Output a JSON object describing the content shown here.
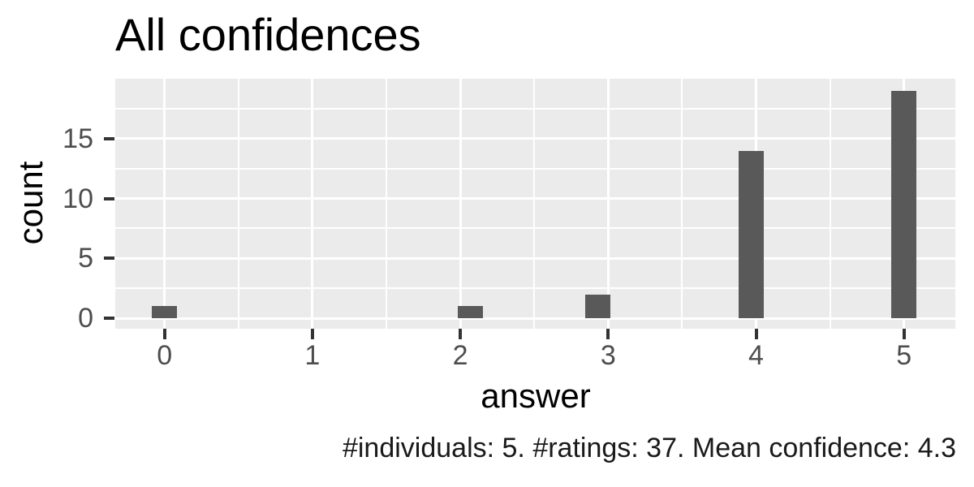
{
  "figure": {
    "title": "All confidences",
    "x_axis": {
      "label": "answer",
      "tick_labels": [
        "0",
        "1",
        "2",
        "3",
        "4",
        "5"
      ]
    },
    "y_axis": {
      "label": "count",
      "tick_labels": [
        "0",
        "5",
        "10",
        "15"
      ]
    },
    "caption": "#individuals: 5. #ratings: 37. Mean confidence: 4.3"
  },
  "chart_data": {
    "type": "bar",
    "subtype": "histogram",
    "title": "All confidences",
    "xlabel": "answer",
    "ylabel": "count",
    "categories": [
      0,
      2,
      3,
      4,
      5
    ],
    "values": [
      1,
      1,
      2,
      14,
      19
    ],
    "bar_centers_x": [
      0,
      2.069,
      2.931,
      3.966,
      5.0
    ],
    "bin_width": 0.1724,
    "x_ticks": [
      0,
      1,
      2,
      3,
      4,
      5
    ],
    "x_minor_ticks": [
      0.5,
      1.5,
      2.5,
      3.5,
      4.5
    ],
    "y_ticks": [
      0,
      5,
      10,
      15
    ],
    "y_minor_ticks": [
      2.5,
      7.5,
      12.5,
      17.5
    ],
    "xlim": [
      -0.33,
      5.35
    ],
    "ylim": [
      -0.95,
      19.95
    ],
    "grid": "white major and minor on grey panel",
    "legend": false,
    "stats": {
      "individuals": 5,
      "ratings": 37,
      "mean_confidence": 4.3
    },
    "colors": {
      "bar_fill": "#595959",
      "panel_background": "#EBEBEB",
      "gridline": "#FFFFFF",
      "tick_mark": "#333333",
      "tick_label_text": "#4D4D4D",
      "title_text": "#000000",
      "figure_background": "#FFFFFF"
    }
  }
}
